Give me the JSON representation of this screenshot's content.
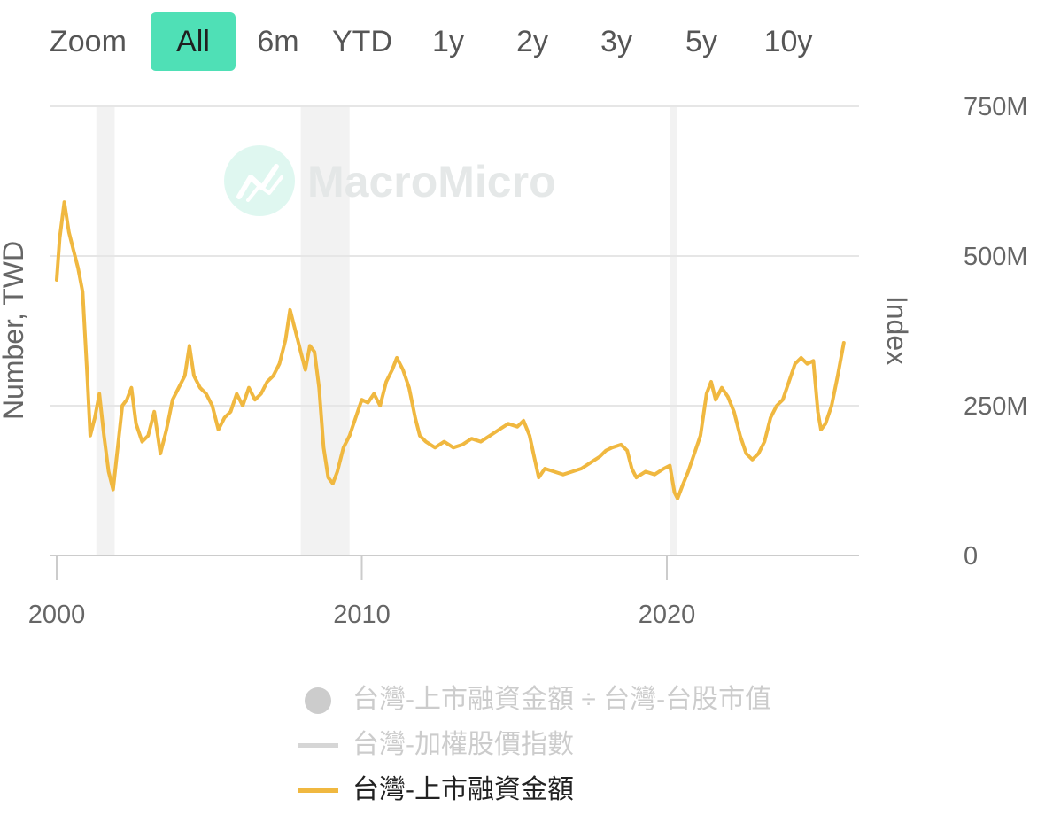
{
  "zoom": {
    "label": "Zoom",
    "buttons": [
      "All",
      "6m",
      "YTD",
      "1y",
      "2y",
      "3y",
      "5y",
      "10y"
    ],
    "active_index": 0,
    "active_color": "#4fe0b6"
  },
  "watermark": {
    "text": "MacroMicro"
  },
  "chart_data": {
    "type": "line",
    "xlim": [
      2000.0,
      2026.6
    ],
    "x_ticks": [
      "2000",
      "2010",
      "2020"
    ],
    "x_tick_values": [
      2000,
      2010,
      2020
    ],
    "ylabel_left": "Number, TWD",
    "ylabel_right": "Index",
    "y_right_ticks": [
      "0",
      "250M",
      "500M",
      "750M"
    ],
    "y_right_tick_values": [
      0,
      250,
      500,
      750
    ],
    "ylim": [
      0,
      750
    ],
    "y_unit": "M TWD",
    "grid": true,
    "recession_bands": [
      [
        2001.3,
        2001.9
      ],
      [
        2008.0,
        2009.6
      ],
      [
        2020.1,
        2020.3
      ]
    ],
    "series": [
      {
        "name": "台灣-上市融資金額",
        "color": "#f0b840",
        "points": [
          [
            2000.0,
            460
          ],
          [
            2000.1,
            530
          ],
          [
            2000.25,
            590
          ],
          [
            2000.4,
            540
          ],
          [
            2000.55,
            510
          ],
          [
            2000.7,
            480
          ],
          [
            2000.85,
            440
          ],
          [
            2001.0,
            300
          ],
          [
            2001.1,
            200
          ],
          [
            2001.25,
            230
          ],
          [
            2001.4,
            270
          ],
          [
            2001.55,
            200
          ],
          [
            2001.7,
            140
          ],
          [
            2001.85,
            110
          ],
          [
            2002.0,
            180
          ],
          [
            2002.15,
            250
          ],
          [
            2002.3,
            260
          ],
          [
            2002.45,
            280
          ],
          [
            2002.6,
            220
          ],
          [
            2002.8,
            190
          ],
          [
            2003.0,
            200
          ],
          [
            2003.2,
            240
          ],
          [
            2003.4,
            170
          ],
          [
            2003.6,
            210
          ],
          [
            2003.8,
            260
          ],
          [
            2004.0,
            280
          ],
          [
            2004.2,
            300
          ],
          [
            2004.35,
            350
          ],
          [
            2004.5,
            300
          ],
          [
            2004.7,
            280
          ],
          [
            2004.9,
            270
          ],
          [
            2005.1,
            250
          ],
          [
            2005.3,
            210
          ],
          [
            2005.5,
            230
          ],
          [
            2005.7,
            240
          ],
          [
            2005.9,
            270
          ],
          [
            2006.1,
            250
          ],
          [
            2006.3,
            280
          ],
          [
            2006.5,
            260
          ],
          [
            2006.7,
            270
          ],
          [
            2006.9,
            290
          ],
          [
            2007.1,
            300
          ],
          [
            2007.3,
            320
          ],
          [
            2007.5,
            360
          ],
          [
            2007.65,
            410
          ],
          [
            2007.8,
            380
          ],
          [
            2008.0,
            340
          ],
          [
            2008.15,
            310
          ],
          [
            2008.3,
            350
          ],
          [
            2008.45,
            340
          ],
          [
            2008.6,
            280
          ],
          [
            2008.75,
            180
          ],
          [
            2008.9,
            130
          ],
          [
            2009.05,
            120
          ],
          [
            2009.2,
            140
          ],
          [
            2009.4,
            180
          ],
          [
            2009.6,
            200
          ],
          [
            2009.8,
            230
          ],
          [
            2010.0,
            260
          ],
          [
            2010.2,
            255
          ],
          [
            2010.4,
            270
          ],
          [
            2010.6,
            250
          ],
          [
            2010.8,
            290
          ],
          [
            2011.0,
            310
          ],
          [
            2011.15,
            330
          ],
          [
            2011.35,
            310
          ],
          [
            2011.55,
            280
          ],
          [
            2011.75,
            230
          ],
          [
            2011.9,
            200
          ],
          [
            2012.1,
            190
          ],
          [
            2012.4,
            180
          ],
          [
            2012.7,
            190
          ],
          [
            2013.0,
            180
          ],
          [
            2013.3,
            185
          ],
          [
            2013.6,
            195
          ],
          [
            2013.9,
            190
          ],
          [
            2014.2,
            200
          ],
          [
            2014.5,
            210
          ],
          [
            2014.8,
            220
          ],
          [
            2015.1,
            215
          ],
          [
            2015.3,
            225
          ],
          [
            2015.5,
            200
          ],
          [
            2015.65,
            165
          ],
          [
            2015.8,
            130
          ],
          [
            2016.0,
            145
          ],
          [
            2016.3,
            140
          ],
          [
            2016.6,
            135
          ],
          [
            2016.9,
            140
          ],
          [
            2017.2,
            145
          ],
          [
            2017.5,
            155
          ],
          [
            2017.8,
            165
          ],
          [
            2018.0,
            175
          ],
          [
            2018.2,
            180
          ],
          [
            2018.5,
            185
          ],
          [
            2018.7,
            175
          ],
          [
            2018.85,
            145
          ],
          [
            2019.0,
            130
          ],
          [
            2019.3,
            140
          ],
          [
            2019.6,
            135
          ],
          [
            2019.9,
            145
          ],
          [
            2020.1,
            150
          ],
          [
            2020.25,
            105
          ],
          [
            2020.35,
            95
          ],
          [
            2020.5,
            115
          ],
          [
            2020.7,
            140
          ],
          [
            2020.9,
            170
          ],
          [
            2021.1,
            200
          ],
          [
            2021.3,
            270
          ],
          [
            2021.45,
            290
          ],
          [
            2021.6,
            260
          ],
          [
            2021.8,
            280
          ],
          [
            2022.0,
            265
          ],
          [
            2022.2,
            240
          ],
          [
            2022.4,
            200
          ],
          [
            2022.6,
            170
          ],
          [
            2022.8,
            160
          ],
          [
            2023.0,
            170
          ],
          [
            2023.2,
            190
          ],
          [
            2023.4,
            230
          ],
          [
            2023.6,
            250
          ],
          [
            2023.8,
            260
          ],
          [
            2024.0,
            290
          ],
          [
            2024.2,
            320
          ],
          [
            2024.4,
            330
          ],
          [
            2024.6,
            320
          ],
          [
            2024.8,
            325
          ],
          [
            2024.95,
            240
          ],
          [
            2025.05,
            210
          ],
          [
            2025.2,
            220
          ],
          [
            2025.4,
            250
          ],
          [
            2025.6,
            300
          ],
          [
            2025.8,
            355
          ]
        ]
      }
    ],
    "legend": [
      {
        "name": "台灣-上市融資金額 ÷ 台灣-台股市值",
        "symbol": "circle",
        "color": "#cccccc",
        "text_color": "#cccccc"
      },
      {
        "name": "台灣-加權股價指數",
        "symbol": "line",
        "color": "#d6d6d6",
        "text_color": "#cccccc"
      },
      {
        "name": "台灣-上市融資金額",
        "symbol": "line",
        "color": "#f0b840",
        "text_color": "#222222"
      }
    ]
  }
}
